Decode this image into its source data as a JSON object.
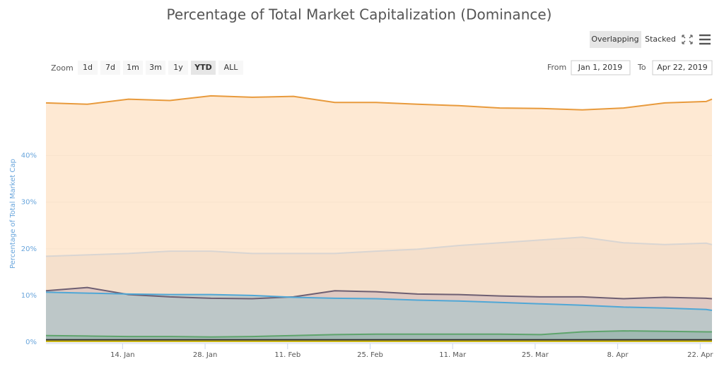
{
  "ui": {
    "view_buttons": [
      "Overlapping",
      "Stacked"
    ],
    "zoom_label": "Zoom",
    "zoom_buttons": [
      "1d",
      "7d",
      "1m",
      "3m",
      "1y",
      "YTD",
      "ALL"
    ],
    "zoom_selected": 5,
    "from_label": "From",
    "from_value": "Jan 1, 2019",
    "to_label": "To",
    "to_value": "Apr 22, 2019"
  },
  "chart_data": {
    "type": "area",
    "title": "Percentage of Total Market Capitalization (Dominance)",
    "y_label": "Percentage of Total Market Cap",
    "x": [
      "2019-01-01",
      "2019-01-08",
      "2019-01-15",
      "2019-01-22",
      "2019-01-29",
      "2019-02-05",
      "2019-02-12",
      "2019-02-19",
      "2019-02-26",
      "2019-03-05",
      "2019-03-12",
      "2019-03-19",
      "2019-03-26",
      "2019-04-02",
      "2019-04-09",
      "2019-04-16",
      "2019-04-23",
      "2019-04-24"
    ],
    "xlim": [
      "2019-01-01",
      "2019-04-24"
    ],
    "xticks": [
      {
        "value": "2019-01-14",
        "label": "14. Jan"
      },
      {
        "value": "2019-01-28",
        "label": "28. Jan"
      },
      {
        "value": "2019-02-11",
        "label": "11. Feb"
      },
      {
        "value": "2019-02-25",
        "label": "25. Feb"
      },
      {
        "value": "2019-03-11",
        "label": "11. Mar"
      },
      {
        "value": "2019-03-25",
        "label": "25. Mar"
      },
      {
        "value": "2019-04-08",
        "label": "8. Apr"
      },
      {
        "value": "2019-04-22",
        "label": "22. Apr"
      }
    ],
    "ylim": [
      0,
      54
    ],
    "yticks": [
      {
        "value": 0,
        "label": "0%"
      },
      {
        "value": 10,
        "label": "10%"
      },
      {
        "value": 20,
        "label": "20%"
      },
      {
        "value": 30,
        "label": "30%"
      },
      {
        "value": 40,
        "label": "40%"
      }
    ],
    "grid": true,
    "series": [
      {
        "color": "#e89a3c",
        "fill": "#fde2c4",
        "values": [
          51.3,
          51.0,
          52.1,
          51.8,
          52.8,
          52.5,
          52.7,
          51.4,
          51.4,
          51.0,
          50.7,
          50.2,
          50.1,
          49.8,
          50.2,
          51.3,
          51.6,
          52.1
        ]
      },
      {
        "color": "#d9d5d2",
        "fill": "#f2dcc9",
        "values": [
          18.4,
          18.7,
          19.0,
          19.5,
          19.5,
          19.0,
          19.0,
          19.0,
          19.5,
          19.9,
          20.7,
          21.3,
          21.9,
          22.5,
          21.3,
          20.9,
          21.2,
          20.9
        ]
      },
      {
        "color": "#6e5f72",
        "fill": "#d8c2bf",
        "values": [
          11.0,
          11.7,
          10.2,
          9.7,
          9.4,
          9.3,
          9.7,
          11.0,
          10.8,
          10.3,
          10.2,
          9.9,
          9.7,
          9.7,
          9.3,
          9.6,
          9.4,
          9.3
        ]
      },
      {
        "color": "#4fa7d6",
        "fill": "#b2c5ca",
        "values": [
          10.7,
          10.5,
          10.3,
          10.2,
          10.2,
          10.0,
          9.6,
          9.4,
          9.3,
          9.0,
          8.8,
          8.5,
          8.2,
          7.9,
          7.5,
          7.3,
          7.0,
          6.8
        ]
      },
      {
        "color": "#5ea46c",
        "fill": "#98b4ac",
        "values": [
          1.4,
          1.3,
          1.2,
          1.2,
          1.1,
          1.2,
          1.4,
          1.6,
          1.7,
          1.7,
          1.7,
          1.7,
          1.6,
          2.2,
          2.4,
          2.3,
          2.2,
          2.2
        ]
      },
      {
        "color": "#333333",
        "fill": "#8a9a90",
        "values": [
          0.5,
          0.5,
          0.5,
          0.5,
          0.5,
          0.5,
          0.5,
          0.5,
          0.5,
          0.5,
          0.5,
          0.5,
          0.5,
          0.5,
          0.5,
          0.5,
          0.5,
          0.5
        ]
      },
      {
        "color": "#c9b200",
        "fill": "#c9c080",
        "values": [
          0.2,
          0.2,
          0.2,
          0.2,
          0.2,
          0.2,
          0.2,
          0.2,
          0.2,
          0.2,
          0.2,
          0.2,
          0.2,
          0.2,
          0.2,
          0.2,
          0.2,
          0.2
        ]
      }
    ]
  }
}
